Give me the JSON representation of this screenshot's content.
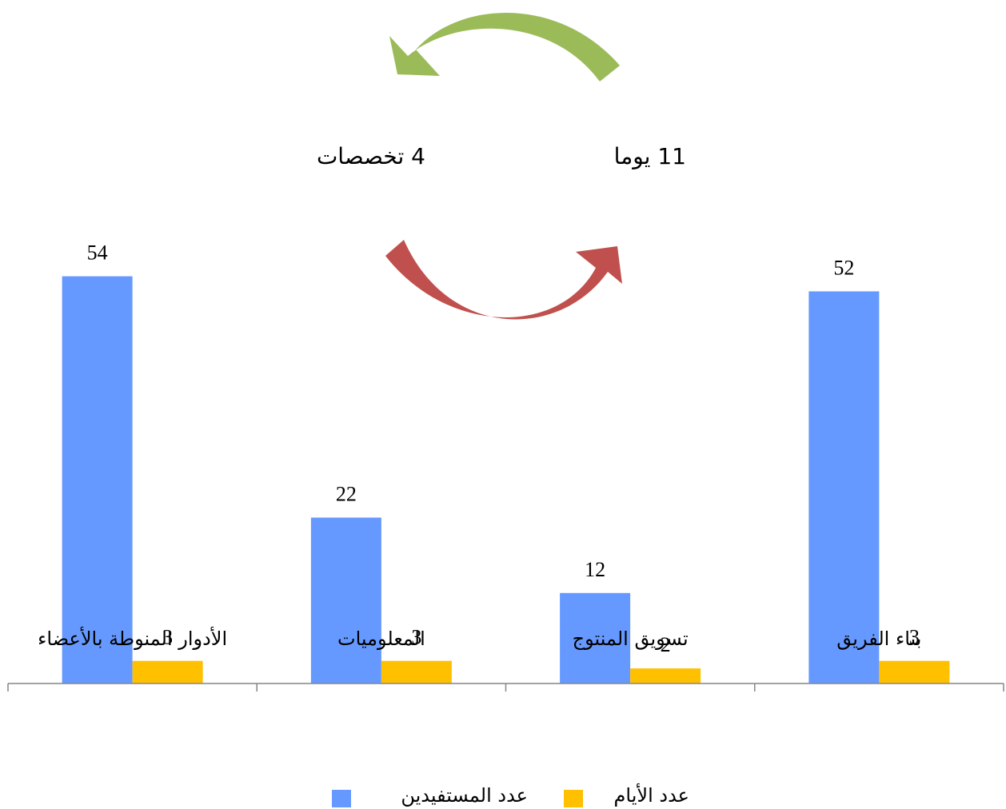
{
  "chart_data": {
    "type": "bar",
    "annotations": [
      "11 يوما",
      "4 تخصصات"
    ],
    "categories": [
      "الأدوار المنوطة بالأعضاء",
      "المعلوميات",
      "تسويق المنتوج",
      "بناء الفريق"
    ],
    "series": [
      {
        "name": "عدد المستفيدين",
        "color": "#6699ff",
        "values": [
          54,
          22,
          12,
          52
        ]
      },
      {
        "name": "عدد الأيام",
        "color": "#ffc000",
        "values": [
          3,
          3,
          2,
          3
        ]
      }
    ],
    "ylim": [
      0,
      60
    ]
  }
}
